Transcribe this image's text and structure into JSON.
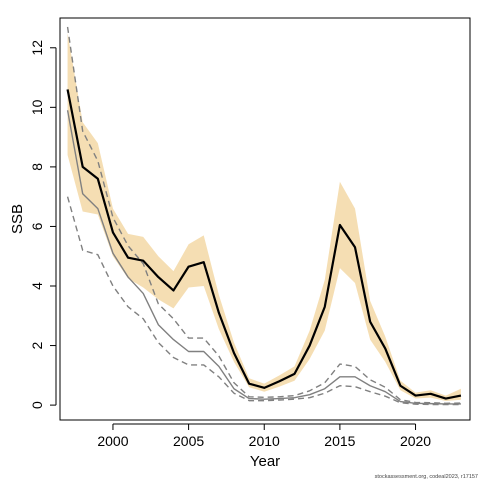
{
  "chart_data": {
    "type": "line",
    "xlabel": "Year",
    "ylabel": "SSB",
    "xlim": [
      1996.5,
      2023.6
    ],
    "ylim": [
      -0.5,
      13.0
    ],
    "x_ticks": [
      2000,
      2005,
      2010,
      2015,
      2020
    ],
    "y_ticks": [
      0,
      2,
      4,
      6,
      8,
      10,
      12
    ],
    "grid": false,
    "legend": "none",
    "colors": {
      "band": "#f5deb3",
      "estimate": "#000000",
      "previous": "#808080",
      "previous_interval": "#808080"
    },
    "x": [
      1997,
      1998,
      1999,
      2000,
      2001,
      2002,
      2003,
      2004,
      2005,
      2006,
      2007,
      2008,
      2009,
      2010,
      2011,
      2012,
      2013,
      2014,
      2015,
      2016,
      2017,
      2018,
      2019,
      2020,
      2021,
      2022,
      2023
    ],
    "series": [
      {
        "role": "estimate",
        "style": "solid-black",
        "values": [
          10.6,
          8.0,
          7.6,
          5.8,
          4.95,
          4.85,
          4.3,
          3.85,
          4.65,
          4.8,
          3.1,
          1.75,
          0.72,
          0.58,
          0.8,
          1.05,
          2.0,
          3.3,
          6.05,
          5.3,
          2.8,
          1.9,
          0.65,
          0.32,
          0.38,
          0.22,
          0.32
        ]
      },
      {
        "role": "estimate_lower",
        "style": "band",
        "values": [
          8.4,
          6.5,
          6.4,
          5.0,
          4.25,
          3.95,
          3.55,
          3.25,
          3.95,
          4.0,
          2.55,
          1.45,
          0.6,
          0.45,
          0.62,
          0.82,
          1.55,
          2.5,
          4.6,
          4.1,
          2.2,
          1.45,
          0.5,
          0.22,
          0.25,
          0.14,
          0.18
        ]
      },
      {
        "role": "estimate_upper",
        "style": "band",
        "values": [
          12.5,
          9.5,
          8.8,
          6.6,
          5.75,
          5.65,
          5.0,
          4.5,
          5.4,
          5.7,
          3.7,
          2.1,
          0.9,
          0.72,
          1.0,
          1.3,
          2.5,
          4.2,
          7.5,
          6.6,
          3.5,
          2.3,
          0.82,
          0.42,
          0.5,
          0.32,
          0.55
        ]
      },
      {
        "role": "previous",
        "style": "solid-gray",
        "values": [
          9.9,
          7.1,
          6.6,
          5.1,
          4.3,
          3.75,
          2.7,
          2.2,
          1.8,
          1.8,
          1.3,
          0.55,
          0.22,
          0.2,
          0.22,
          0.25,
          0.35,
          0.55,
          0.95,
          0.95,
          0.65,
          0.45,
          0.12,
          0.06,
          0.05,
          0.04,
          0.04
        ]
      },
      {
        "role": "previous_lower",
        "style": "dashed-gray",
        "values": [
          7.0,
          5.2,
          5.05,
          4.0,
          3.3,
          2.9,
          2.1,
          1.6,
          1.35,
          1.35,
          0.95,
          0.4,
          0.15,
          0.15,
          0.17,
          0.2,
          0.25,
          0.4,
          0.65,
          0.62,
          0.45,
          0.3,
          0.08,
          0.03,
          0.02,
          0.02,
          0.02
        ]
      },
      {
        "role": "previous_upper",
        "style": "dashed-gray",
        "values": [
          12.7,
          9.2,
          8.2,
          6.3,
          5.35,
          4.75,
          3.4,
          2.9,
          2.25,
          2.25,
          1.65,
          0.75,
          0.28,
          0.26,
          0.28,
          0.32,
          0.48,
          0.75,
          1.38,
          1.3,
          0.85,
          0.6,
          0.18,
          0.09,
          0.08,
          0.06,
          0.07
        ]
      }
    ]
  },
  "credit": "stockassessment.org, codeal2023, r17157"
}
